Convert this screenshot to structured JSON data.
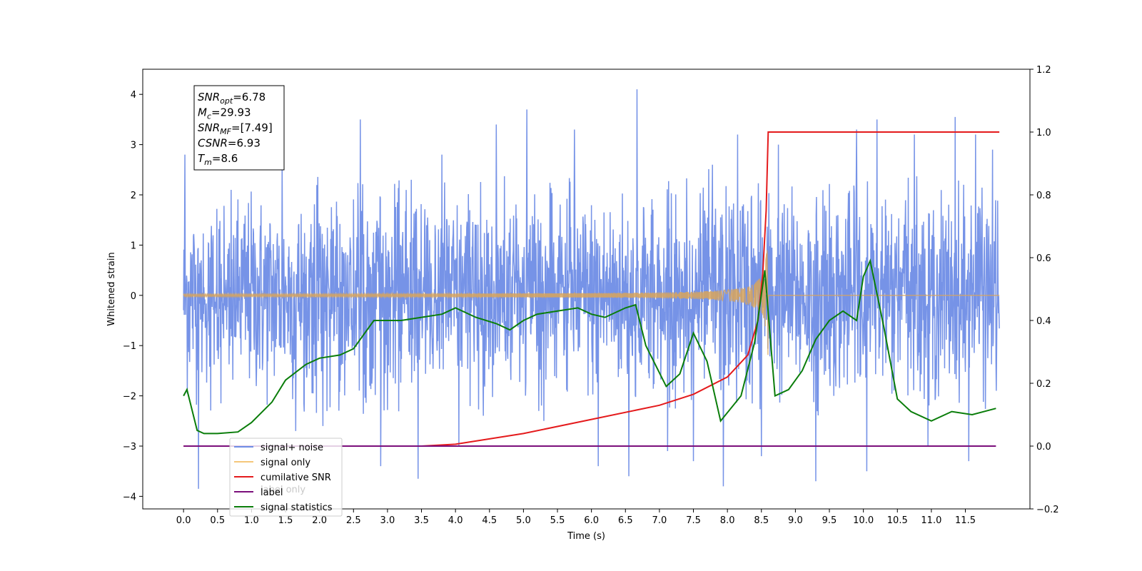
{
  "chart_data": {
    "type": "line",
    "xlabel": "Time (s)",
    "ylabel": "Whitened strain",
    "xlim": [
      -0.6,
      12.45
    ],
    "ylim": [
      -4.25,
      4.5
    ],
    "y2lim": [
      -0.2,
      1.2
    ],
    "x_ticks": [
      "0.0",
      "0.5",
      "1.0",
      "1.5",
      "2.0",
      "2.5",
      "3.0",
      "3.5",
      "4.0",
      "4.5",
      "5.0",
      "5.5",
      "6.0",
      "6.5",
      "7.0",
      "7.5",
      "8.0",
      "8.5",
      "9.0",
      "9.5",
      "10.0",
      "10.5",
      "11.0",
      "11.5"
    ],
    "y_ticks": [
      "−4",
      "−3",
      "−2",
      "−1",
      "0",
      "1",
      "2",
      "3",
      "4"
    ],
    "y2_ticks": [
      "−0.2",
      "0.0",
      "0.2",
      "0.4",
      "0.6",
      "0.8",
      "1.0",
      "1.2"
    ],
    "annotation": {
      "lines": [
        {
          "base": "SNR",
          "sub": "opt",
          "value": "=6.78"
        },
        {
          "base": "M",
          "sub": "c",
          "value": "=29.93"
        },
        {
          "base": "SNR",
          "sub": "MF",
          "value": "=[7.49]"
        },
        {
          "base": "CSNR",
          "sub": "",
          "value": "=6.93"
        },
        {
          "base": "T",
          "sub": "m",
          "value": "=8.6"
        }
      ]
    },
    "legend": {
      "placement": "lower-left",
      "entries": [
        {
          "label": "signal+ noise",
          "color": "#6f8de6"
        },
        {
          "label": "signal only",
          "color": "#f5c77a"
        },
        {
          "label": "cumilative SNR",
          "color": "#e41a1c"
        },
        {
          "label": "label",
          "color": "#7b0f7b"
        },
        {
          "label": "signal statistics",
          "color": "#0a7d0a"
        }
      ],
      "hidden_text": "label only"
    },
    "series": [
      {
        "name": "signal+ noise",
        "axis": "left",
        "color": "#6f8de6",
        "x_range": [
          0.0,
          12.0
        ],
        "band": [
          -1.5,
          1.6
        ],
        "spikes": [
          [
            0.02,
            2.8
          ],
          [
            0.22,
            -3.85
          ],
          [
            0.7,
            2.1
          ],
          [
            1.45,
            2.7
          ],
          [
            1.65,
            -2.7
          ],
          [
            2.05,
            -2.6
          ],
          [
            2.6,
            3.5
          ],
          [
            2.9,
            -3.4
          ],
          [
            3.35,
            2.3
          ],
          [
            3.45,
            -3.65
          ],
          [
            3.8,
            2.8
          ],
          [
            4.05,
            -3.0
          ],
          [
            4.6,
            3.4
          ],
          [
            5.05,
            3.7
          ],
          [
            5.3,
            -2.5
          ],
          [
            5.75,
            3.3
          ],
          [
            6.1,
            -3.4
          ],
          [
            6.55,
            -3.6
          ],
          [
            6.67,
            4.1
          ],
          [
            7.12,
            -3.1
          ],
          [
            7.5,
            -3.3
          ],
          [
            7.78,
            2.6
          ],
          [
            7.94,
            -3.8
          ],
          [
            8.15,
            3.2
          ],
          [
            8.5,
            -3.2
          ],
          [
            8.75,
            3.0
          ],
          [
            9.3,
            -3.7
          ],
          [
            9.9,
            3.3
          ],
          [
            10.05,
            -3.5
          ],
          [
            10.2,
            3.5
          ],
          [
            10.75,
            3.2
          ],
          [
            10.95,
            -3.0
          ],
          [
            11.35,
            3.55
          ],
          [
            11.55,
            -3.3
          ],
          [
            11.65,
            3.2
          ],
          [
            11.9,
            2.9
          ]
        ]
      },
      {
        "name": "signal only",
        "axis": "left",
        "color": "#f5c77a",
        "x_range": [
          0.0,
          12.0
        ],
        "merger_time": 8.6
      },
      {
        "name": "cumilative SNR",
        "axis": "right",
        "color": "#e41a1c",
        "x": [
          0.0,
          3.5,
          4.0,
          5.0,
          6.0,
          7.0,
          7.5,
          8.0,
          8.3,
          8.45,
          8.52,
          8.57,
          8.6,
          12.0
        ],
        "y": [
          0.0,
          0.0,
          0.006,
          0.04,
          0.085,
          0.13,
          0.165,
          0.22,
          0.29,
          0.4,
          0.55,
          0.75,
          1.0,
          1.0
        ]
      },
      {
        "name": "label",
        "axis": "right",
        "color": "#7b0f7b",
        "x": [
          0.0,
          11.95
        ],
        "y": [
          0.0,
          0.0
        ]
      },
      {
        "name": "signal statistics",
        "axis": "right",
        "color": "#0a7d0a",
        "x": [
          0.0,
          0.05,
          0.2,
          0.3,
          0.5,
          0.8,
          1.0,
          1.3,
          1.5,
          1.8,
          2.0,
          2.3,
          2.5,
          2.8,
          3.0,
          3.2,
          3.5,
          3.8,
          4.0,
          4.3,
          4.6,
          4.8,
          5.0,
          5.2,
          5.5,
          5.8,
          6.0,
          6.2,
          6.5,
          6.65,
          6.8,
          7.1,
          7.3,
          7.5,
          7.7,
          7.9,
          8.2,
          8.4,
          8.55,
          8.7,
          8.9,
          9.1,
          9.3,
          9.5,
          9.7,
          9.9,
          10.0,
          10.1,
          10.3,
          10.5,
          10.7,
          11.0,
          11.3,
          11.6,
          11.95
        ],
        "y": [
          0.16,
          0.18,
          0.05,
          0.04,
          0.04,
          0.045,
          0.075,
          0.14,
          0.21,
          0.26,
          0.28,
          0.29,
          0.31,
          0.4,
          0.4,
          0.4,
          0.41,
          0.42,
          0.44,
          0.41,
          0.39,
          0.37,
          0.4,
          0.42,
          0.43,
          0.44,
          0.42,
          0.41,
          0.44,
          0.45,
          0.32,
          0.19,
          0.23,
          0.36,
          0.27,
          0.08,
          0.16,
          0.33,
          0.56,
          0.16,
          0.18,
          0.24,
          0.34,
          0.4,
          0.43,
          0.4,
          0.54,
          0.59,
          0.38,
          0.15,
          0.11,
          0.08,
          0.11,
          0.1,
          0.12
        ]
      }
    ]
  }
}
